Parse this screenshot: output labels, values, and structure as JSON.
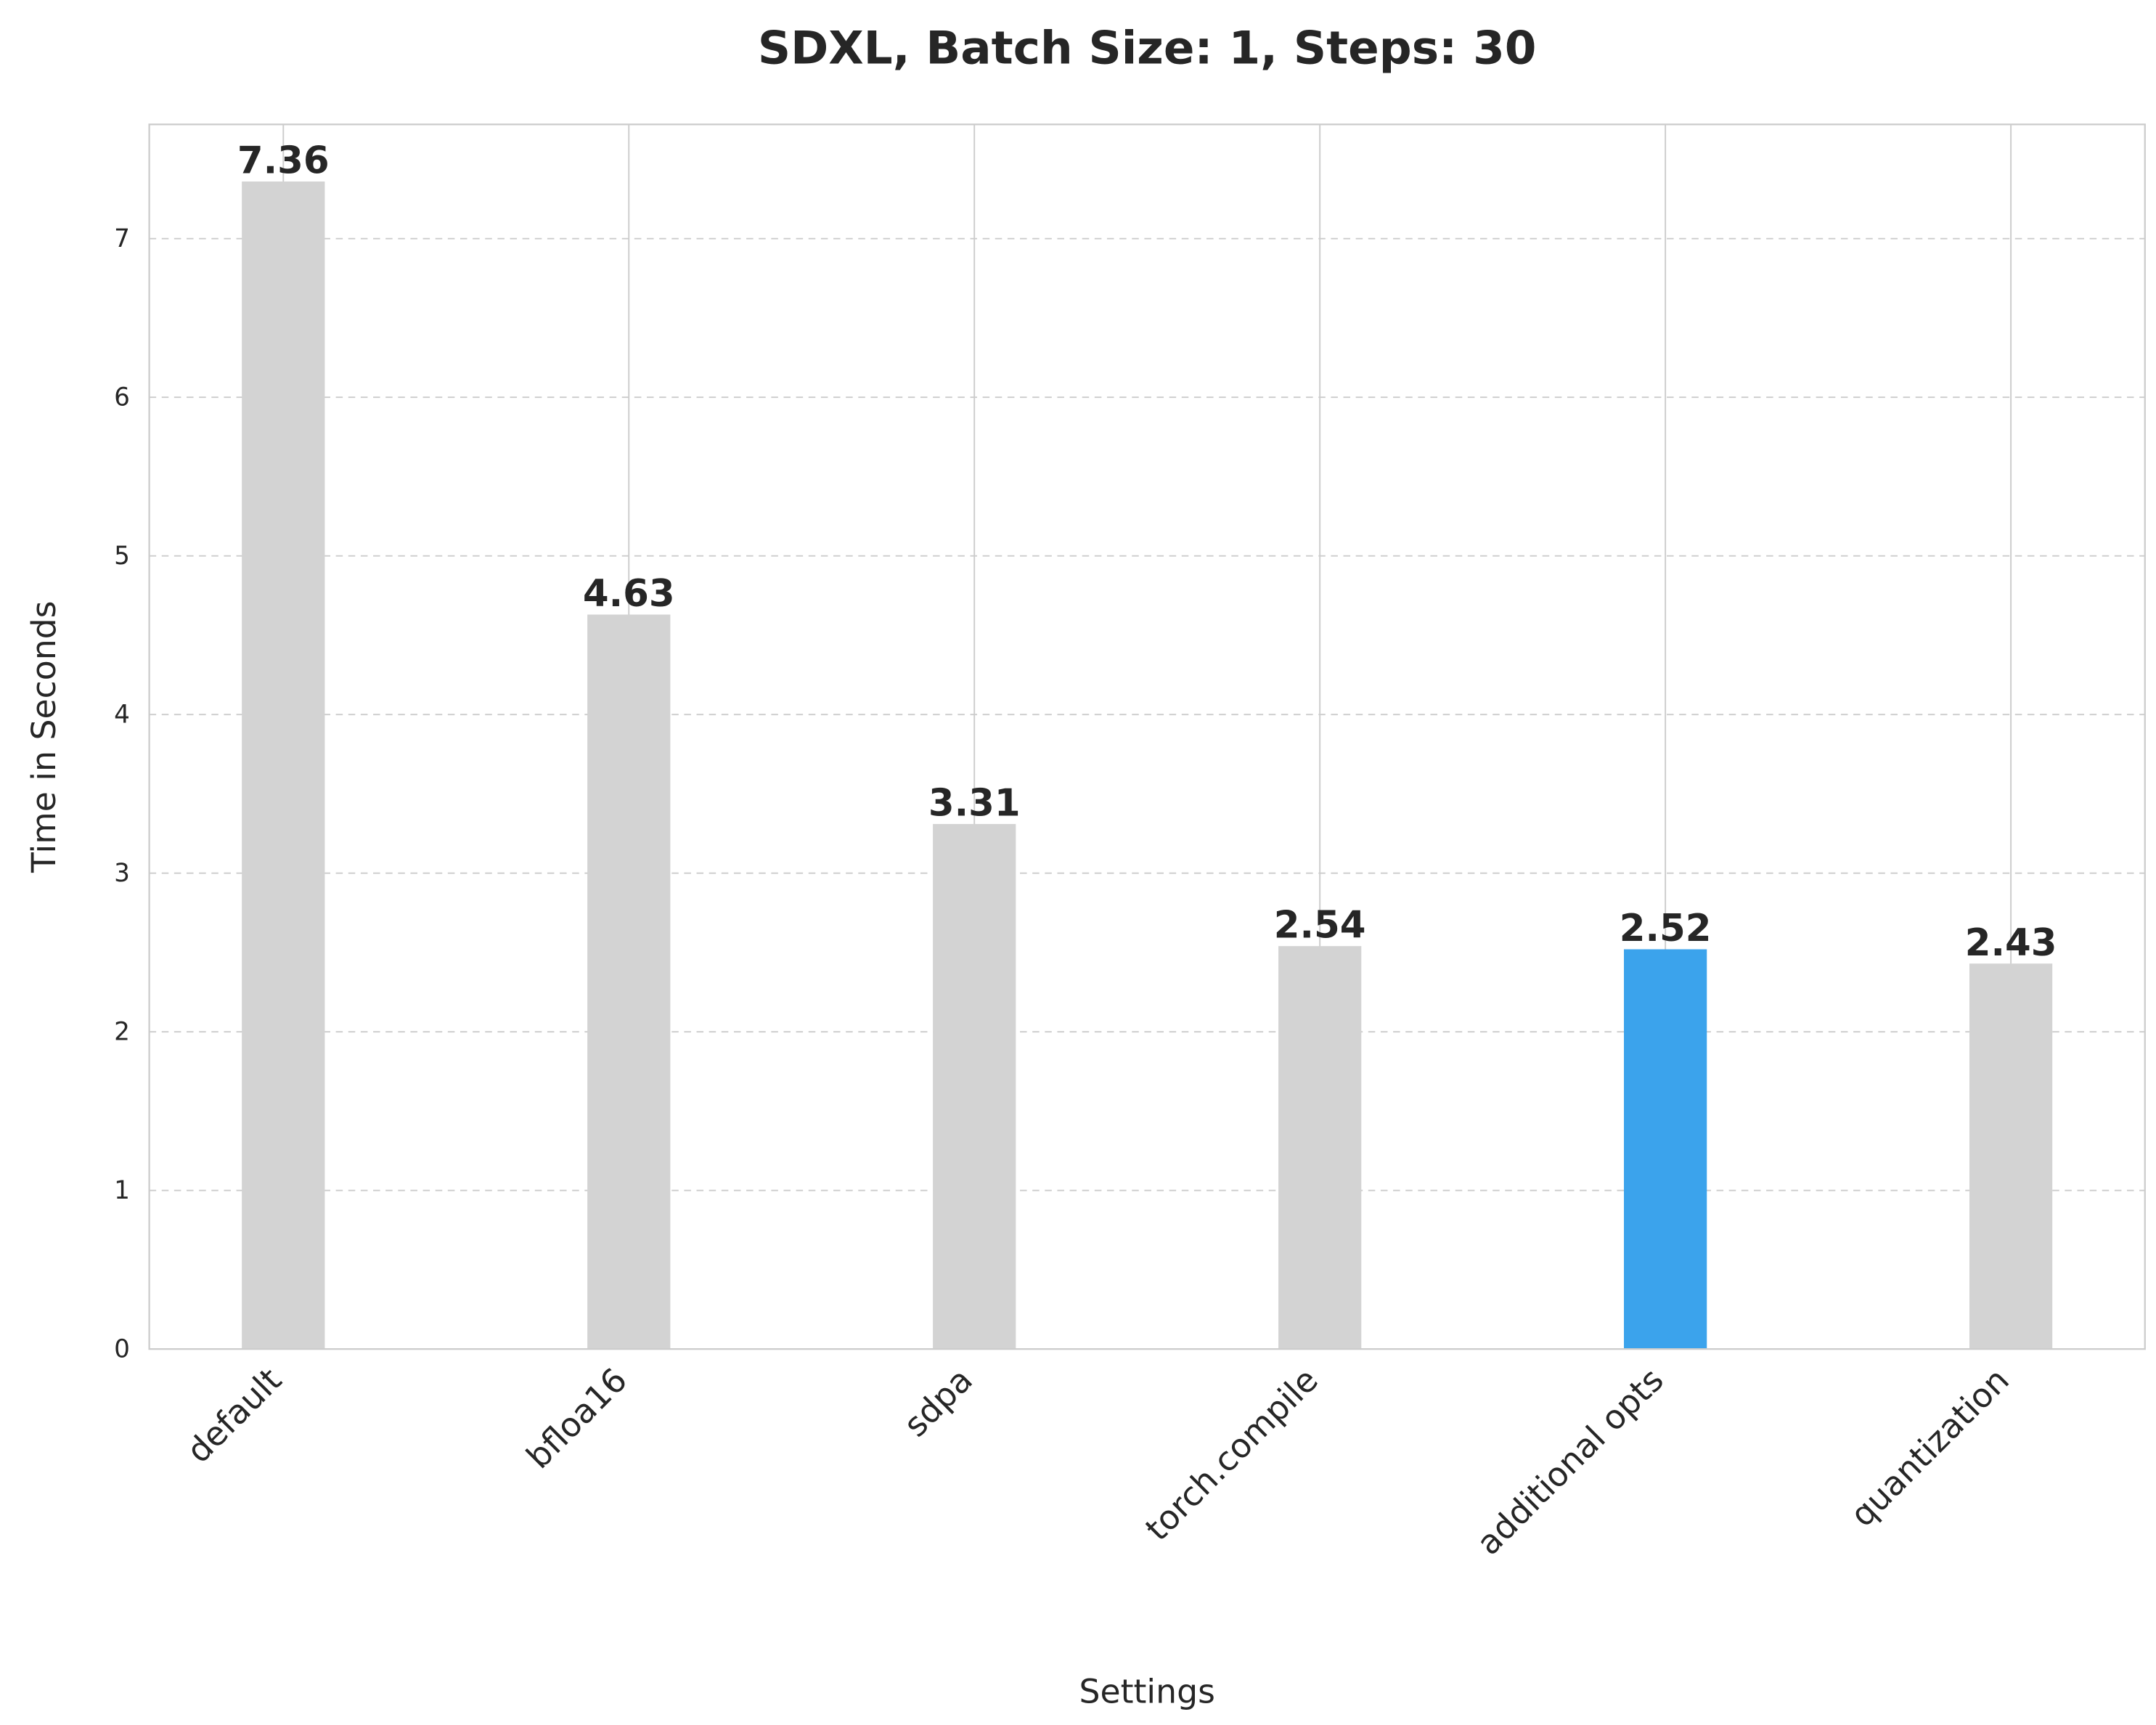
{
  "chart_data": {
    "type": "bar",
    "title": "SDXL, Batch Size: 1, Steps: 30",
    "xlabel": "Settings",
    "ylabel": "Time in Seconds",
    "categories": [
      "default",
      "bfloa16",
      "sdpa",
      "torch.compile",
      "additional opts",
      "quantization"
    ],
    "values": [
      7.36,
      4.63,
      3.31,
      2.54,
      2.52,
      2.43
    ],
    "data_labels": [
      "7.36",
      "4.63",
      "3.31",
      "2.54",
      "2.52",
      "2.43"
    ],
    "highlight_index": 4,
    "ylim": [
      0,
      7.72
    ],
    "yticks": [
      0,
      1,
      2,
      3,
      4,
      5,
      6,
      7
    ],
    "grid": {
      "horizontal": "dashed",
      "vertical": "solid"
    },
    "colors": {
      "bar": "#d3d3d3",
      "highlight": "#3ba3ec",
      "grid": "#cccccc",
      "spine": "#cccccc",
      "text": "#262626"
    }
  }
}
